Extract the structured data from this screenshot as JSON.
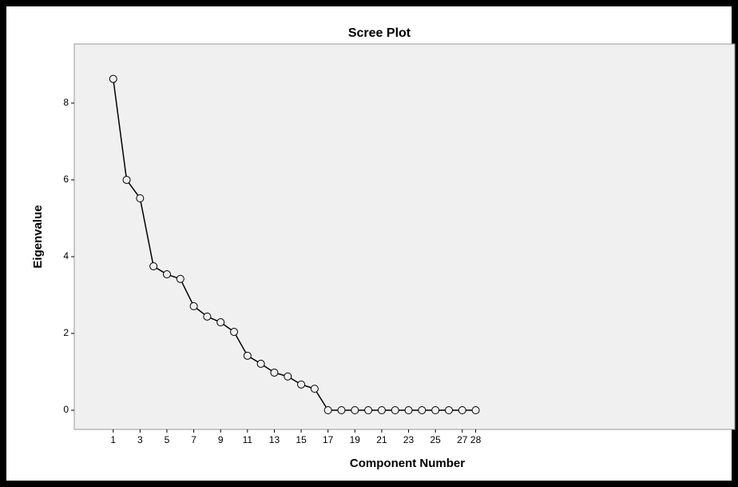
{
  "chart_data": {
    "type": "line",
    "title": "Scree Plot",
    "x_label": "Component Number",
    "y_label": "Eigenvalue",
    "x": [
      1,
      2,
      3,
      4,
      5,
      6,
      7,
      8,
      9,
      10,
      11,
      12,
      13,
      14,
      15,
      16,
      17,
      18,
      19,
      20,
      21,
      22,
      23,
      24,
      25,
      26,
      27,
      28
    ],
    "values": [
      8.63,
      6.0,
      5.52,
      3.75,
      3.54,
      3.42,
      2.71,
      2.44,
      2.29,
      2.04,
      1.42,
      1.21,
      0.98,
      0.88,
      0.67,
      0.56,
      0,
      0,
      0,
      0,
      0,
      0,
      0,
      0,
      0,
      0,
      0,
      0
    ],
    "color": "#000000",
    "xlim": [
      -1.9,
      47.3
    ],
    "xticks": [
      1,
      3,
      5,
      7,
      9,
      11,
      13,
      15,
      17,
      19,
      21,
      23,
      25,
      27,
      28
    ],
    "ylim": [
      -0.5,
      9.54
    ],
    "yticks": [
      0,
      2,
      4,
      6,
      8
    ]
  }
}
